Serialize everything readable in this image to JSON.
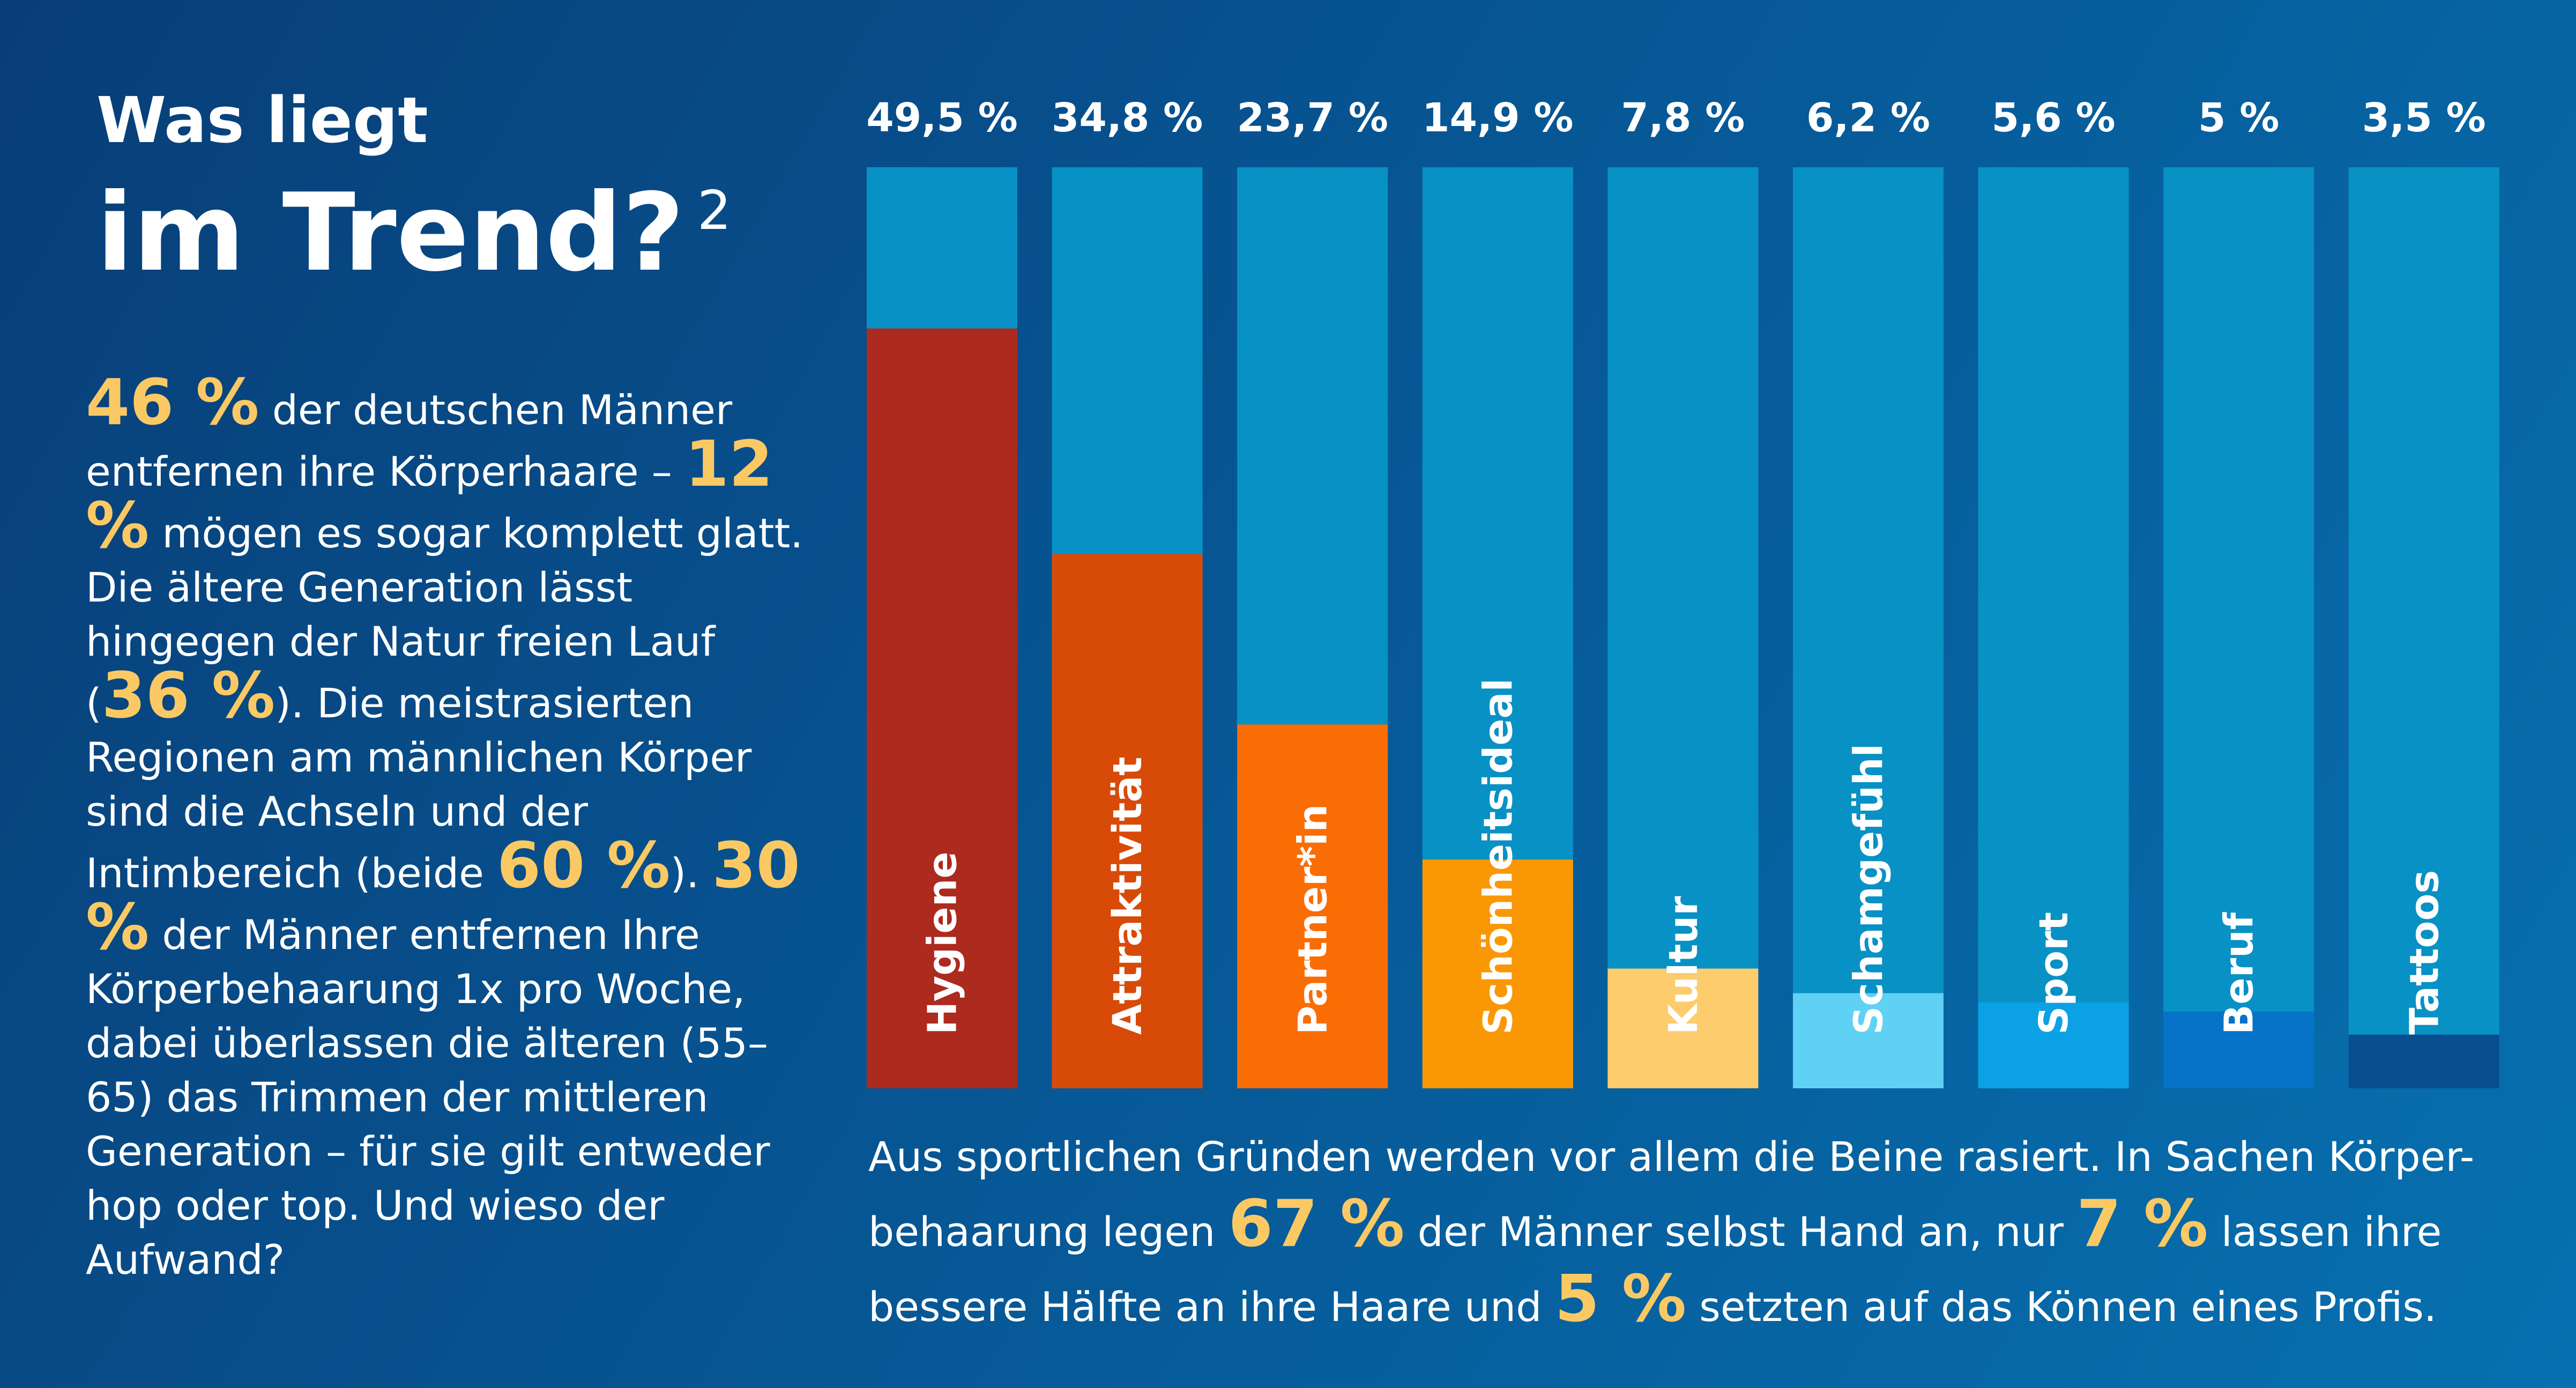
{
  "title": {
    "line1": "Was liegt",
    "line2": "im Trend?",
    "footnote": "2"
  },
  "intro": {
    "hl1": "46 %",
    "t1": " der deutschen Männer entfernen ihre Körperhaare – ",
    "hl2": "12 %",
    "t2": " mögen es sogar komplett glatt. Die ältere Generation lässt hingegen der Natur freien Lauf (",
    "hl3": "36 %",
    "t3": "). Die meistrasierten Regionen am männlichen Körper sind die Achseln und der Intimbereich (beide ",
    "hl4": "60 %",
    "t4": "). ",
    "hl5": "30 %",
    "t5": " der Männer entfernen Ihre Körperbehaarung 1x pro Woche, dabei überlassen die  älteren (55–65) das Trimmen der mittleren Generation – für sie gilt entweder hop oder top. Und wieso der Aufwand?"
  },
  "bottom": {
    "t1": "Aus sportlichen Gründen werden vor allem die Beine rasiert. In Sachen Körper-behaarung legen ",
    "hl1": "67 %",
    "t2": " der Männer selbst Hand an, nur ",
    "hl2": "7 %",
    "t3": " lassen ihre bessere Hälfte an ihre Haare und ",
    "hl3": "5 %",
    "t4": " setzten auf das Können eines Profis."
  },
  "chart_data": {
    "type": "bar",
    "ylim": [
      0,
      60
    ],
    "background_color": "#0891c5",
    "categories": [
      "Hygiene",
      "Attraktivität",
      "Partner*in",
      "Schönheitsideal",
      "Kultur",
      "Schamgefühl",
      "Sport",
      "Beruf",
      "Tattoos"
    ],
    "values": [
      49.5,
      34.8,
      23.7,
      14.9,
      7.8,
      6.2,
      5.6,
      5,
      3.5
    ],
    "value_labels": [
      "49,5 %",
      "34,8 %",
      "23,7 %",
      "14,9 %",
      "7,8 %",
      "6,2 %",
      "5,6 %",
      "5 %",
      "3,5 %"
    ],
    "colors": [
      "#ad2a1f",
      "#d84a08",
      "#fa6c04",
      "#fa9704",
      "#fdcc6c",
      "#5fd1f5",
      "#0aa2e5",
      "#0672c8",
      "#084e8f"
    ]
  }
}
